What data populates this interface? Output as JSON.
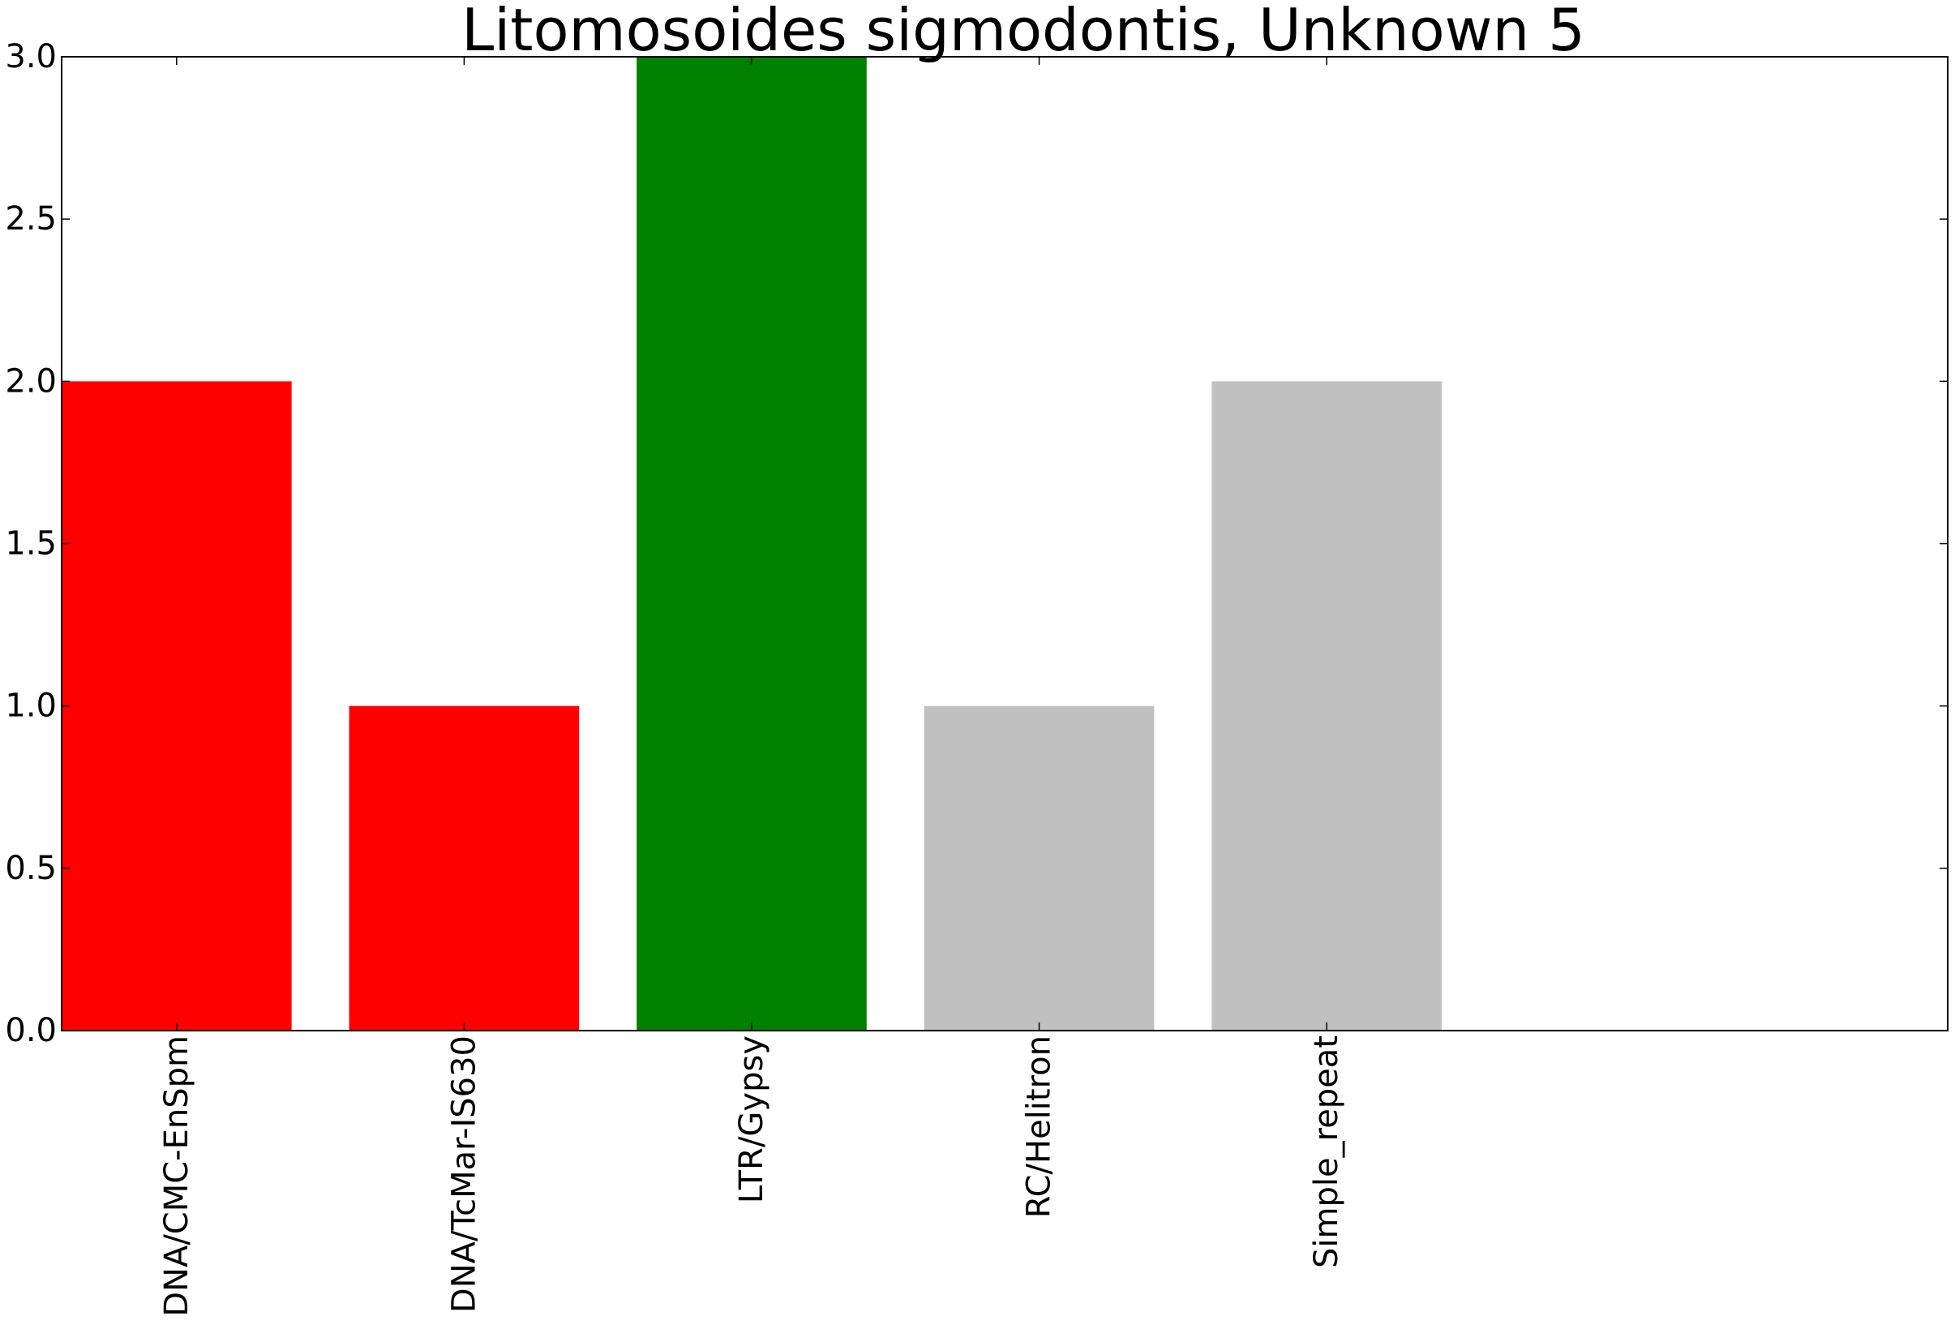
{
  "chart_data": {
    "type": "bar",
    "title": "Litomosoides sigmodontis, Unknown 5",
    "xlabel": "",
    "ylabel": "",
    "categories": [
      "DNA/CMC-EnSpm",
      "DNA/TcMar-IS630",
      "LTR/Gypsy",
      "RC/Helitron",
      "Simple_repeat"
    ],
    "values": [
      2,
      1,
      3,
      1,
      2
    ],
    "bar_colors": [
      "#ff0000",
      "#ff0000",
      "#008000",
      "#c0c0c0",
      "#c0c0c0"
    ],
    "ylim": [
      0,
      3
    ],
    "xlim": [
      0,
      6.56
    ],
    "bar_width": 0.8,
    "yticks": [
      0.0,
      0.5,
      1.0,
      1.5,
      2.0,
      2.5,
      3.0
    ],
    "ytick_labels": [
      "0.0",
      "0.5",
      "1.0",
      "1.5",
      "2.0",
      "2.5",
      "3.0"
    ],
    "grid": false,
    "legend": "none"
  }
}
